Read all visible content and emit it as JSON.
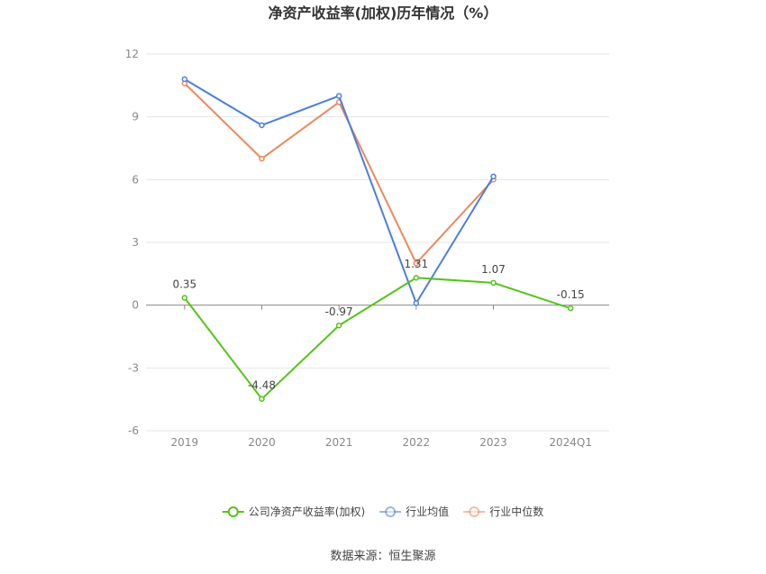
{
  "chart_data": {
    "type": "line",
    "title": "净资产收益率(加权)历年情况（%）",
    "categories": [
      "2019",
      "2020",
      "2021",
      "2022",
      "2023",
      "2024Q1"
    ],
    "ylim": [
      -6,
      12
    ],
    "yticks": [
      12,
      9,
      6,
      3,
      0,
      -3,
      -6
    ],
    "grid": true,
    "legend_position": "bottom",
    "series": [
      {
        "name": "公司净资产收益率(加权)",
        "color": "#52c41a",
        "values": [
          0.35,
          -4.48,
          -0.97,
          1.31,
          1.07,
          -0.15
        ],
        "labels": [
          "0.35",
          "-4.48",
          "-0.97",
          "1.31",
          "1.07",
          "-0.15"
        ]
      },
      {
        "name": "行业均值",
        "color": "#4a7ee0",
        "values": [
          10.8,
          8.6,
          10.0,
          0.1,
          6.15,
          null
        ]
      },
      {
        "name": "行业中位数",
        "color": "#f0875a",
        "values": [
          10.6,
          7.0,
          9.7,
          2.0,
          6.0,
          null
        ]
      }
    ]
  },
  "source": "数据来源：恒生聚源"
}
